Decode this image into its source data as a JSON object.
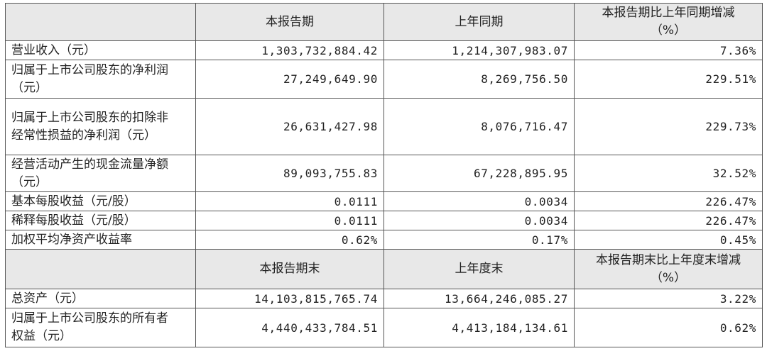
{
  "table": {
    "header": [
      [
        "本报告期"
      ],
      [
        "上年同期"
      ],
      [
        "本报告期比上年同期增减",
        "（%）"
      ]
    ],
    "rows": [
      [
        "营业收入（元）",
        "1,303,732,884.42",
        "1,214,307,983.07",
        "7.36%"
      ],
      [
        "归属于上市公司股东的净利润（元）",
        "27,249,649.90",
        "8,269,756.50",
        "229.51%"
      ],
      [
        "归属于上市公司股东的扣除非经常性损益的净利润（元）",
        "26,631,427.98",
        "8,076,716.47",
        "229.73%"
      ],
      [
        "经营活动产生的现金流量净额（元）",
        "89,093,755.83",
        "67,228,895.95",
        "32.52%"
      ],
      [
        "基本每股收益（元/股）",
        "0.0111",
        "0.0034",
        "226.47%"
      ],
      [
        "稀释每股收益（元/股）",
        "0.0111",
        "0.0034",
        "226.47%"
      ],
      [
        "加权平均净资产收益率",
        "0.62%",
        "0.17%",
        "0.45%"
      ]
    ],
    "header2": [
      [
        "本报告期末"
      ],
      [
        "上年度末"
      ],
      [
        "本报告期末比上年度末增减",
        "（%）"
      ]
    ],
    "rows2": [
      [
        "总资产（元）",
        "14,103,815,765.74",
        "13,664,246,085.27",
        "3.22%"
      ],
      [
        "归属于上市公司股东的所有者权益（元）",
        "4,440,433,784.51",
        "4,413,184,134.61",
        "0.62%"
      ]
    ]
  }
}
